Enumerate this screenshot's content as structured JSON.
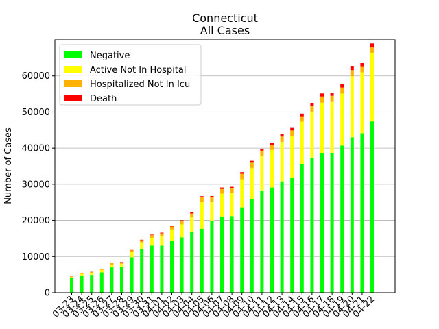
{
  "chart_data": {
    "type": "bar",
    "stacked": true,
    "title": "Connecticut",
    "subtitle": "All Cases",
    "xlabel": "",
    "ylabel": "Number of Cases",
    "ylim": [
      0,
      70000
    ],
    "yticks": [
      0,
      10000,
      20000,
      30000,
      40000,
      50000,
      60000
    ],
    "ytick_labels": [
      "0",
      "10000",
      "20000",
      "30000",
      "40000",
      "50000",
      "60000"
    ],
    "grid": "horizontal",
    "legend_position": "top-left",
    "categories": [
      "03-23",
      "03-24",
      "03-25",
      "03-26",
      "03-27",
      "03-28",
      "03-29",
      "03-30",
      "03-31",
      "04-01",
      "04-02",
      "04-03",
      "04-04",
      "04-05",
      "04-06",
      "04-07",
      "04-08",
      "04-09",
      "04-10",
      "04-11",
      "04-12",
      "04-13",
      "04-14",
      "04-15",
      "04-16",
      "04-17",
      "04-18",
      "04-19",
      "04-20",
      "04-21",
      "04-22"
    ],
    "series": [
      {
        "name": "Negative",
        "color": "#00ff00",
        "values": [
          4000,
          4700,
          4900,
          5600,
          7000,
          7100,
          9800,
          12000,
          13000,
          13000,
          14400,
          15300,
          16700,
          17700,
          19800,
          21100,
          21200,
          23600,
          25900,
          28300,
          29100,
          30800,
          31800,
          35500,
          37300,
          38700,
          38700,
          40700,
          43000,
          44100,
          47400
        ]
      },
      {
        "name": "Active Not In Hospital",
        "color": "#ffff00",
        "values": [
          300,
          500,
          600,
          700,
          800,
          900,
          1400,
          1900,
          2200,
          2600,
          3100,
          3600,
          4200,
          7400,
          5400,
          6300,
          6400,
          7800,
          8600,
          9500,
          10400,
          10900,
          11500,
          11800,
          12800,
          13900,
          14100,
          14400,
          16900,
          16900,
          19000
        ]
      },
      {
        "name": "Hospitalized Not In Icu",
        "color": "#ffb300",
        "values": [
          150,
          200,
          250,
          300,
          400,
          400,
          500,
          600,
          700,
          800,
          800,
          900,
          1000,
          1300,
          1200,
          1300,
          1300,
          1500,
          1500,
          1500,
          1400,
          1500,
          1600,
          1500,
          1600,
          1700,
          1700,
          1700,
          1700,
          1500,
          1500
        ]
      },
      {
        "name": "Death",
        "color": "#ff0000",
        "values": [
          50,
          50,
          50,
          50,
          100,
          100,
          100,
          150,
          150,
          200,
          200,
          250,
          300,
          300,
          350,
          400,
          400,
          450,
          500,
          550,
          600,
          650,
          700,
          750,
          800,
          850,
          900,
          950,
          1000,
          1050,
          1100
        ]
      }
    ]
  }
}
